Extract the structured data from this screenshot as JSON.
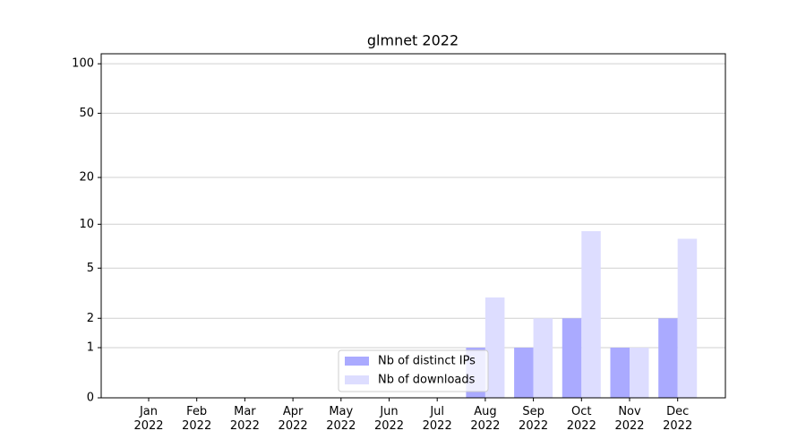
{
  "chart_data": {
    "type": "bar",
    "title": "glmnet 2022",
    "categories": [
      "Jan 2022",
      "Feb 2022",
      "Mar 2022",
      "Apr 2022",
      "May 2022",
      "Jun 2022",
      "Jul 2022",
      "Aug 2022",
      "Sep 2022",
      "Oct 2022",
      "Nov 2022",
      "Dec 2022"
    ],
    "series": [
      {
        "name": "Nb of distinct IPs",
        "color": "#aaaaff",
        "values": [
          0,
          0,
          0,
          0,
          0,
          0,
          0,
          1,
          1,
          2,
          1,
          2
        ]
      },
      {
        "name": "Nb of downloads",
        "color": "#ddddff",
        "values": [
          0,
          0,
          0,
          0,
          0,
          0,
          0,
          3,
          2,
          9,
          1,
          8
        ]
      }
    ],
    "yscale": "log1p",
    "ylim": [
      0,
      115
    ],
    "yticks": [
      0,
      1,
      2,
      5,
      10,
      20,
      50,
      100
    ],
    "grid": true,
    "legend": "lower center"
  }
}
